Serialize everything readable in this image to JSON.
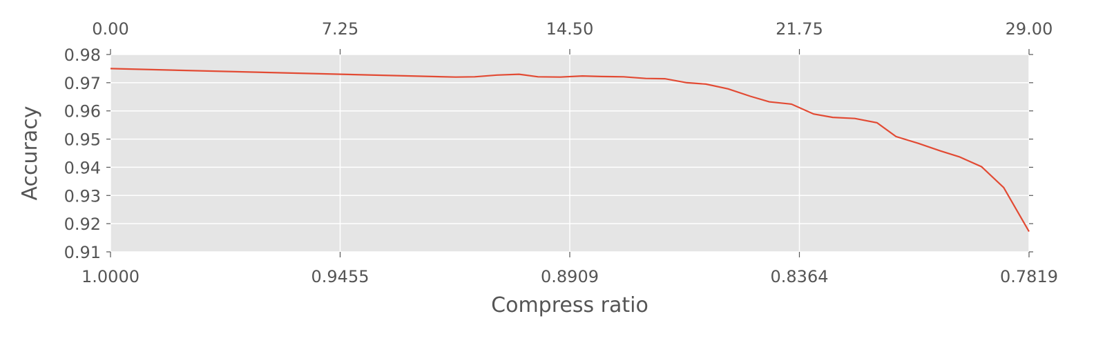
{
  "chart_data": {
    "type": "line",
    "title": "",
    "xlabel": "Compress ratio",
    "ylabel": "Accuracy",
    "top_axis": {
      "range": [
        0,
        29
      ],
      "ticks": [
        0,
        7.25,
        14.5,
        21.75,
        29
      ],
      "tick_labels": [
        "0.00",
        "7.25",
        "14.50",
        "21.75",
        "29.00"
      ]
    },
    "bottom_axis": {
      "ticks": [
        0,
        7.25,
        14.5,
        21.75,
        29
      ],
      "tick_labels": [
        "1.0000",
        "0.9455",
        "0.8909",
        "0.8364",
        "0.7819"
      ]
    },
    "ylim": [
      0.91,
      0.98
    ],
    "yticks": [
      0.91,
      0.92,
      0.93,
      0.94,
      0.95,
      0.96,
      0.97,
      0.98
    ],
    "ytick_labels": [
      "0.91",
      "0.92",
      "0.93",
      "0.94",
      "0.95",
      "0.96",
      "0.97",
      "0.98"
    ],
    "grid": true,
    "colors": {
      "background": "#e5e5e5",
      "grid": "#ffffff",
      "line": "#e24a33",
      "text": "#555555"
    },
    "series": [
      {
        "x": [
          0,
          10.9,
          11.5,
          12.2,
          12.9,
          13.5,
          14.2,
          14.9,
          15.5,
          16.2,
          16.9,
          17.5,
          18.2,
          18.8,
          19.5,
          20.2,
          20.8,
          21.5,
          22.2,
          22.8,
          23.5,
          24.2,
          24.8,
          25.5,
          26.2,
          26.8,
          27.5,
          28.2,
          29
        ],
        "y": [
          0.975,
          0.972,
          0.9721,
          0.9727,
          0.973,
          0.9721,
          0.972,
          0.9724,
          0.9722,
          0.9721,
          0.9715,
          0.9714,
          0.97,
          0.9695,
          0.9678,
          0.9652,
          0.9632,
          0.9624,
          0.9589,
          0.9577,
          0.9573,
          0.9558,
          0.9509,
          0.9485,
          0.9458,
          0.9437,
          0.9402,
          0.9328,
          0.9172
        ]
      }
    ]
  }
}
